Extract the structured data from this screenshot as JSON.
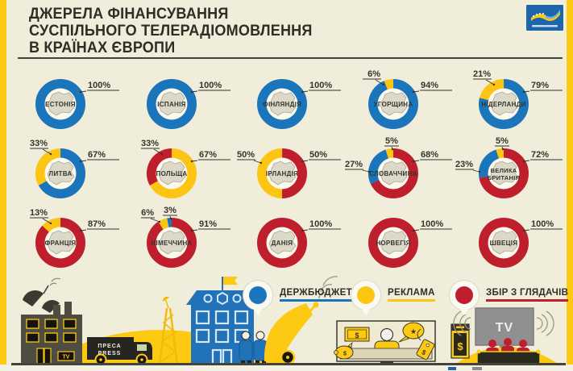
{
  "title": {
    "line1": "ДЖЕРЕЛА ФІНАНСУВАННЯ",
    "line2": "СУСПІЛЬНОГО ТЕЛЕРАДІОМОВЛЕННЯ",
    "line3": "В КРАЇНАХ ЄВРОПИ"
  },
  "palette": {
    "blue": "#1b75bb",
    "yellow": "#fdc513",
    "red": "#bf1f2d",
    "dark": "#35342b",
    "bg": "#f0eddb",
    "inner": "#fbf9ee",
    "map_fill": "#dcd9c9",
    "map_stroke": "#aaa796",
    "stripe": "#fdc913"
  },
  "legend": [
    {
      "label": "ДЕРЖБЮДЖЕТ",
      "color": "blue"
    },
    {
      "label": "РЕКЛАМА",
      "color": "yellow"
    },
    {
      "label": "ЗБІР З ГЛЯДАЧІВ",
      "color": "red"
    }
  ],
  "chart_data": {
    "type": "donut",
    "unit": "%",
    "legend": [
      "ДЕРЖБЮДЖЕТ = blue",
      "РЕКЛАМА = yellow",
      "ЗБІР З ГЛЯДАЧІВ = red"
    ],
    "countries": [
      {
        "name": "ЕСТОНІЯ",
        "name_lines": [
          "ЕСТОНІЯ"
        ],
        "segments": [
          {
            "source": "ДЕРЖБЮДЖЕТ",
            "color": "blue",
            "value": 100
          }
        ],
        "labels": [
          {
            "text": "100%",
            "pos": "right"
          }
        ]
      },
      {
        "name": "ІСПАНІЯ",
        "name_lines": [
          "ІСПАНІЯ"
        ],
        "segments": [
          {
            "source": "ДЕРЖБЮДЖЕТ",
            "color": "blue",
            "value": 100
          }
        ],
        "labels": [
          {
            "text": "100%",
            "pos": "right"
          }
        ]
      },
      {
        "name": "ФІНЛЯНДІЯ",
        "name_lines": [
          "ФІНЛЯНДІЯ"
        ],
        "segments": [
          {
            "source": "ДЕРЖБЮДЖЕТ",
            "color": "blue",
            "value": 100
          }
        ],
        "labels": [
          {
            "text": "100%",
            "pos": "right"
          }
        ]
      },
      {
        "name": "УГОРЩИНА",
        "name_lines": [
          "УГОРЩИНА"
        ],
        "segments": [
          {
            "source": "ДЕРЖБЮДЖЕТ",
            "color": "blue",
            "value": 94
          },
          {
            "source": "РЕКЛАМА",
            "color": "yellow",
            "value": 6
          }
        ],
        "labels": [
          {
            "text": "94%",
            "pos": "right"
          },
          {
            "text": "6%",
            "pos": "topleft"
          }
        ]
      },
      {
        "name": "НІДЕРЛАНДИ",
        "name_lines": [
          "НІДЕРЛАНДИ"
        ],
        "segments": [
          {
            "source": "ДЕРЖБЮДЖЕТ",
            "color": "blue",
            "value": 79
          },
          {
            "source": "РЕКЛАМА",
            "color": "yellow",
            "value": 21
          }
        ],
        "labels": [
          {
            "text": "79%",
            "pos": "right"
          },
          {
            "text": "21%",
            "pos": "topleft"
          }
        ]
      },
      {
        "name": "ЛИТВА",
        "name_lines": [
          "ЛИТВА"
        ],
        "segments": [
          {
            "source": "ДЕРЖБЮДЖЕТ",
            "color": "blue",
            "value": 67
          },
          {
            "source": "РЕКЛАМА",
            "color": "yellow",
            "value": 33
          }
        ],
        "labels": [
          {
            "text": "67%",
            "pos": "right"
          },
          {
            "text": "33%",
            "pos": "topleft"
          }
        ]
      },
      {
        "name": "ПОЛЬЩА",
        "name_lines": [
          "ПОЛЬЩА"
        ],
        "segments": [
          {
            "source": "РЕКЛАМА",
            "color": "yellow",
            "value": 67
          },
          {
            "source": "ЗБІР З ГЛЯДАЧІВ",
            "color": "red",
            "value": 33
          }
        ],
        "labels": [
          {
            "text": "67%",
            "pos": "right"
          },
          {
            "text": "33%",
            "pos": "topleft"
          }
        ]
      },
      {
        "name": "ІРЛАНДІЯ",
        "name_lines": [
          "ІРЛАНДІЯ"
        ],
        "segments": [
          {
            "source": "ЗБІР З ГЛЯДАЧІВ",
            "color": "red",
            "value": 50
          },
          {
            "source": "РЕКЛАМА",
            "color": "yellow",
            "value": 50
          }
        ],
        "labels": [
          {
            "text": "50%",
            "pos": "right"
          },
          {
            "text": "50%",
            "pos": "lefthigh"
          }
        ]
      },
      {
        "name": "СЛОВАЧЧИНА",
        "name_lines": [
          "СЛОВАЧЧИНА"
        ],
        "segments": [
          {
            "source": "ЗБІР З ГЛЯДАЧІВ",
            "color": "red",
            "value": 68
          },
          {
            "source": "ДЕРЖБЮДЖЕТ",
            "color": "blue",
            "value": 27
          },
          {
            "source": "РЕКЛАМА",
            "color": "yellow",
            "value": 5
          }
        ],
        "labels": [
          {
            "text": "68%",
            "pos": "right"
          },
          {
            "text": "27%",
            "pos": "left"
          },
          {
            "text": "5%",
            "pos": "top"
          }
        ]
      },
      {
        "name": "ВЕЛИКА БРИТАНІЯ",
        "name_lines": [
          "ВЕЛИКА",
          "БРИТАНІЯ"
        ],
        "segments": [
          {
            "source": "ЗБІР З ГЛЯДАЧІВ",
            "color": "red",
            "value": 72
          },
          {
            "source": "ДЕРЖБЮДЖЕТ",
            "color": "blue",
            "value": 23
          },
          {
            "source": "РЕКЛАМА",
            "color": "yellow",
            "value": 5
          }
        ],
        "labels": [
          {
            "text": "72%",
            "pos": "right"
          },
          {
            "text": "23%",
            "pos": "left"
          },
          {
            "text": "5%",
            "pos": "top"
          }
        ]
      },
      {
        "name": "ФРАНЦІЯ",
        "name_lines": [
          "ФРАНЦІЯ"
        ],
        "segments": [
          {
            "source": "ЗБІР З ГЛЯДАЧІВ",
            "color": "red",
            "value": 87
          },
          {
            "source": "РЕКЛАМА",
            "color": "yellow",
            "value": 13
          }
        ],
        "labels": [
          {
            "text": "87%",
            "pos": "right"
          },
          {
            "text": "13%",
            "pos": "topleft"
          }
        ]
      },
      {
        "name": "НІМЕЧЧИНА",
        "name_lines": [
          "НІМЕЧЧИНА"
        ],
        "segments": [
          {
            "source": "ЗБІР З ГЛЯДАЧІВ",
            "color": "red",
            "value": 91
          },
          {
            "source": "РЕКЛАМА",
            "color": "yellow",
            "value": 6
          },
          {
            "source": "ДЕРЖБЮДЖЕТ",
            "color": "blue",
            "value": 3
          }
        ],
        "labels": [
          {
            "text": "91%",
            "pos": "right"
          },
          {
            "text": "6%",
            "pos": "topleft2"
          },
          {
            "text": "3%",
            "pos": "top"
          }
        ]
      },
      {
        "name": "ДАНІЯ",
        "name_lines": [
          "ДАНІЯ"
        ],
        "segments": [
          {
            "source": "ЗБІР З ГЛЯДАЧІВ",
            "color": "red",
            "value": 100
          }
        ],
        "labels": [
          {
            "text": "100%",
            "pos": "right"
          }
        ]
      },
      {
        "name": "НОРВЕГІЯ",
        "name_lines": [
          "НОРВЕГІЯ"
        ],
        "segments": [
          {
            "source": "ЗБІР З ГЛЯДАЧІВ",
            "color": "red",
            "value": 100
          }
        ],
        "labels": [
          {
            "text": "100%",
            "pos": "right"
          }
        ]
      },
      {
        "name": "ШВЕЦІЯ",
        "name_lines": [
          "ШВЕЦІЯ"
        ],
        "segments": [
          {
            "source": "ЗБІР З ГЛЯДАЧІВ",
            "color": "red",
            "value": 100
          }
        ],
        "labels": [
          {
            "text": "100%",
            "pos": "right"
          }
        ]
      }
    ]
  },
  "illustration": {
    "press_line1": "ПРЕСА",
    "press_line2": "PRESS",
    "tv_sign": "TV",
    "tv_screen": "TV",
    "dollar": "$",
    "star": "★"
  }
}
